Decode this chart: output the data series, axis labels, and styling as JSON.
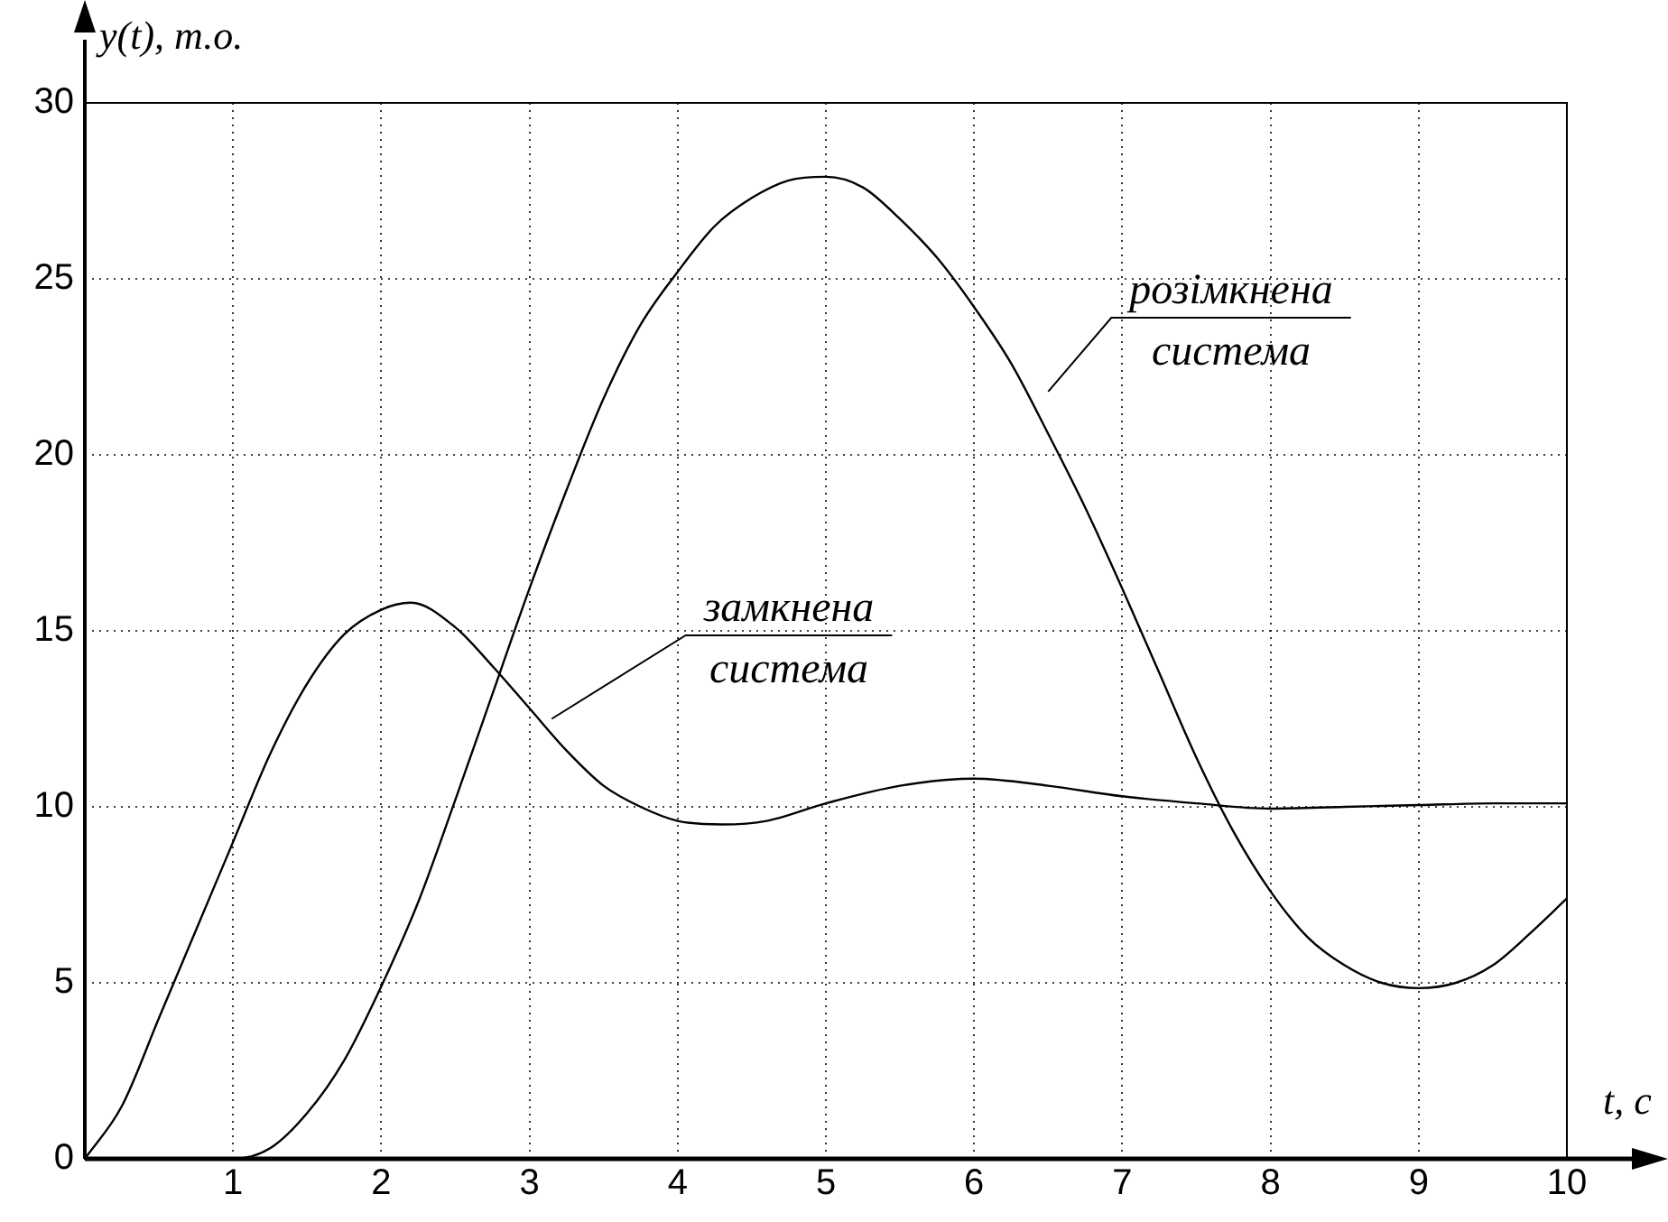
{
  "chart_data": {
    "type": "line",
    "xlabel": "t, c",
    "ylabel": "y(t), т.о.",
    "xlim": [
      0,
      10
    ],
    "ylim": [
      0,
      30
    ],
    "xticks": [
      1,
      2,
      3,
      4,
      5,
      6,
      7,
      8,
      9,
      10
    ],
    "yticks": [
      0,
      5,
      10,
      15,
      20,
      25,
      30
    ],
    "grid": true,
    "legend": false,
    "marker": "none",
    "line_style": "solid",
    "series": [
      {
        "name": "замкнена система",
        "color": "#000000",
        "x": [
          0,
          0.25,
          0.5,
          0.75,
          1,
          1.25,
          1.5,
          1.75,
          2,
          2.2,
          2.5,
          2.75,
          3,
          3.25,
          3.5,
          3.75,
          4,
          4.3,
          4.6,
          5,
          5.5,
          6,
          6.5,
          7,
          7.5,
          8,
          8.5,
          9,
          9.5,
          10
        ],
        "values": [
          0,
          1.5,
          4,
          6.5,
          9,
          11.5,
          13.5,
          14.9,
          15.6,
          15.8,
          15.1,
          14,
          12.8,
          11.6,
          10.6,
          10,
          9.6,
          9.5,
          9.6,
          10.1,
          10.6,
          10.8,
          10.6,
          10.3,
          10.1,
          9.95,
          10,
          10.05,
          10.1,
          10.1
        ]
      },
      {
        "name": "розімкнена система",
        "color": "#000000",
        "x": [
          0,
          1,
          1.25,
          1.5,
          1.75,
          2,
          2.25,
          2.5,
          2.75,
          3,
          3.25,
          3.5,
          3.75,
          4,
          4.25,
          4.5,
          4.75,
          5,
          5.25,
          5.5,
          5.75,
          6,
          6.25,
          6.5,
          6.75,
          7,
          7.25,
          7.5,
          7.75,
          8,
          8.25,
          8.5,
          8.75,
          9,
          9.25,
          9.5,
          9.75,
          10
        ],
        "values": [
          0,
          0,
          0.3,
          1.3,
          2.8,
          4.9,
          7.3,
          10.2,
          13.2,
          16.2,
          19,
          21.6,
          23.7,
          25.2,
          26.5,
          27.3,
          27.8,
          27.9,
          27.6,
          26.7,
          25.6,
          24.2,
          22.6,
          20.6,
          18.5,
          16.2,
          13.8,
          11.4,
          9.3,
          7.6,
          6.3,
          5.5,
          5,
          4.85,
          5,
          5.5,
          6.4,
          7.4
        ]
      }
    ]
  }
}
